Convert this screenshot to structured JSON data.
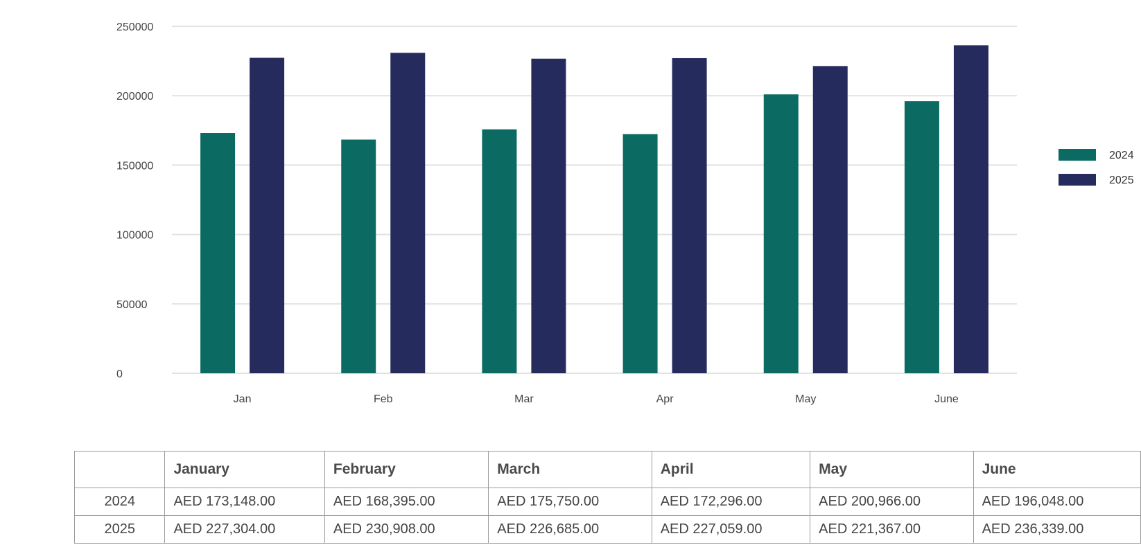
{
  "chart_data": {
    "type": "bar",
    "categories": [
      "Jan",
      "Feb",
      "Mar",
      "Apr",
      "May",
      "June"
    ],
    "series": [
      {
        "name": "2024",
        "values": [
          173148,
          168395,
          175750,
          172296,
          200966,
          196048
        ],
        "color": "#0b6b63"
      },
      {
        "name": "2025",
        "values": [
          227304,
          230908,
          226685,
          227059,
          221367,
          236339
        ],
        "color": "#252b5c"
      }
    ],
    "ylim": [
      0,
      250000
    ],
    "yticks": [
      "0",
      "50000",
      "100000",
      "150000",
      "200000",
      "250000"
    ],
    "grid": true,
    "legend_position": "right",
    "title": "",
    "xlabel": "",
    "ylabel": ""
  },
  "table": {
    "headers": [
      "",
      "January",
      "February",
      "March",
      "April",
      "May",
      "June"
    ],
    "rows": [
      {
        "label": "2024",
        "cells": [
          "AED 173,148.00",
          "AED 168,395.00",
          "AED 175,750.00",
          "AED 172,296.00",
          "AED 200,966.00",
          "AED 196,048.00"
        ]
      },
      {
        "label": "2025",
        "cells": [
          "AED 227,304.00",
          "AED 230,908.00",
          "AED 226,685.00",
          "AED 227,059.00",
          "AED 221,367.00",
          "AED 236,339.00"
        ]
      }
    ]
  }
}
